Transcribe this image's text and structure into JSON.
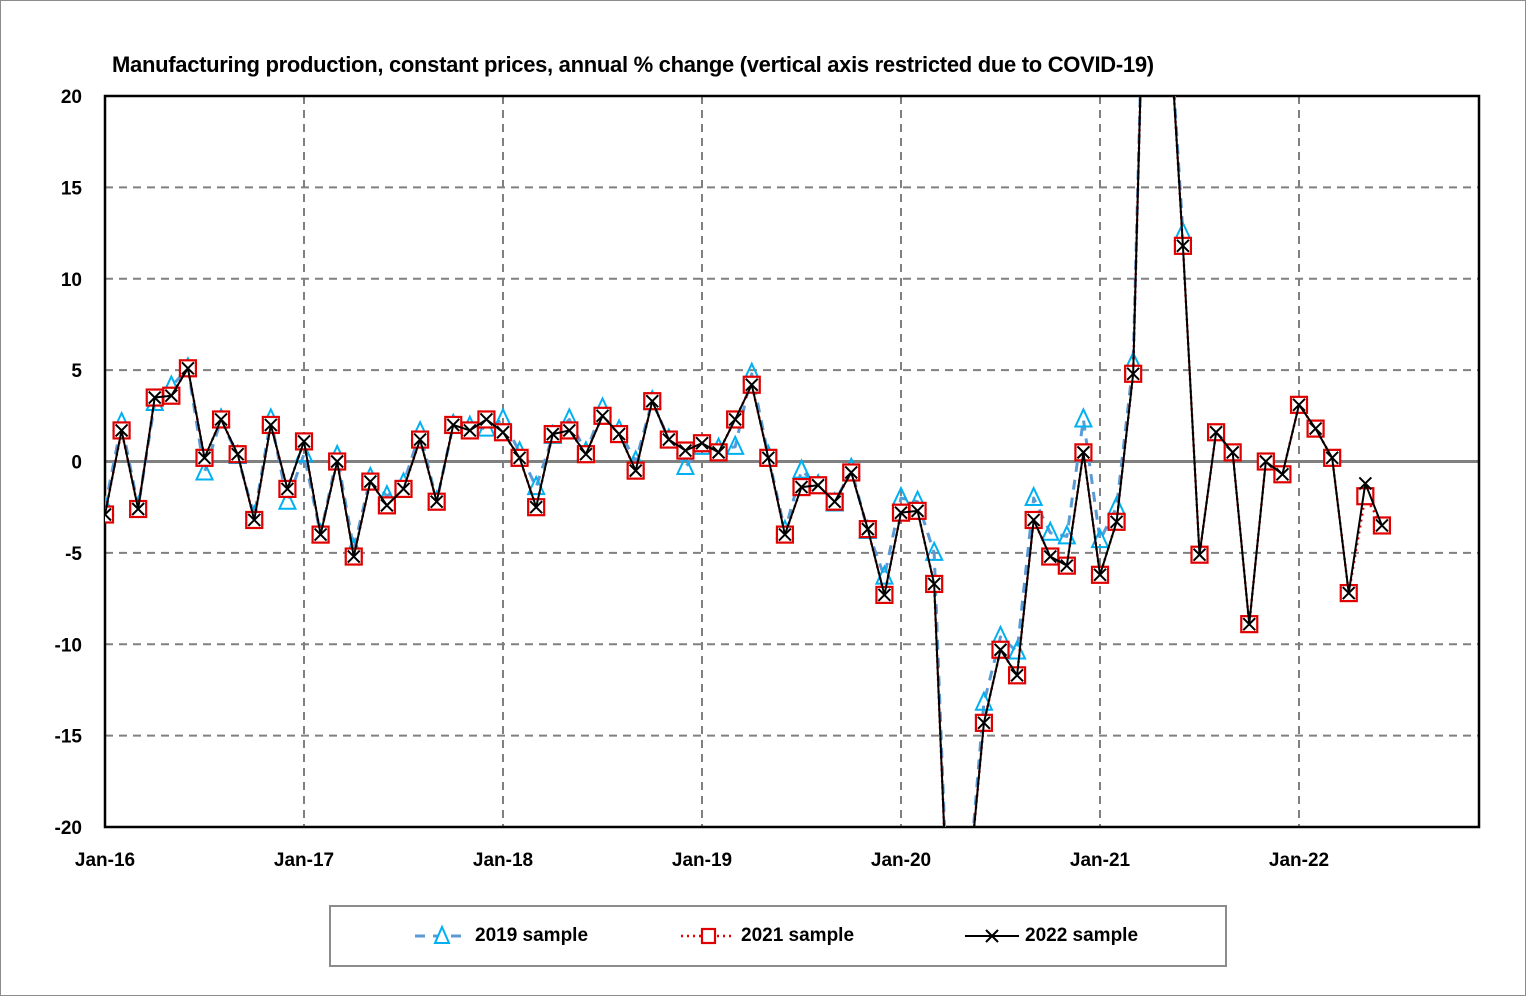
{
  "chart_data": {
    "type": "line",
    "title": "Manufacturing production, constant prices, annual % change (vertical axis restricted due to COVID-19)",
    "xlabel": "",
    "ylabel": "",
    "ylim": [
      -20,
      20
    ],
    "yticks": [
      20,
      15,
      10,
      5,
      0,
      -5,
      -10,
      -15,
      -20
    ],
    "ytick_labels": [
      "20",
      "15",
      "10",
      "5",
      "0",
      "-5",
      "-10",
      "-15",
      "-20"
    ],
    "xtick_labels": [
      "Jan-16",
      "Jan-17",
      "Jan-18",
      "Jan-19",
      "Jan-20",
      "Jan-21",
      "Jan-22"
    ],
    "x_start": "Jan-16",
    "x_frequency": "monthly",
    "x_months_span": 83,
    "grid": true,
    "legend_position": "bottom",
    "series": [
      {
        "name": "2019 sample",
        "color": "#00b0f0",
        "line_color": "#5b9bd5",
        "style": "dashed",
        "marker": "triangle",
        "values": [
          -2.5,
          2.1,
          -2.5,
          3.2,
          4.1,
          5.1,
          -0.6,
          2.3,
          0.3,
          -3.0,
          2.3,
          -2.2,
          0.4,
          -4.0,
          0.3,
          -4.8,
          -0.9,
          -1.9,
          -1.2,
          1.6,
          -2.2,
          2.0,
          1.9,
          1.8,
          2.3,
          0.5,
          -1.4,
          1.4,
          2.3,
          0.5,
          2.9,
          1.7,
          0.0,
          3.3,
          1.2,
          -0.3,
          0.8,
          0.7,
          0.8,
          4.8,
          0.3,
          -3.8,
          -0.5,
          -1.3,
          -2.3,
          -0.4,
          -3.8,
          -6.3,
          -2.0,
          -2.2,
          -5.0,
          -29.0,
          -24.0,
          -13.2,
          -9.6,
          -10.4,
          -2.0,
          -3.9,
          -4.1,
          2.3,
          -4.3,
          -2.5,
          5.4,
          40.0,
          27.0,
          12.5
        ]
      },
      {
        "name": "2021 sample",
        "color": "#e00000",
        "line_color": "#e00000",
        "style": "dotted",
        "marker": "square",
        "values": [
          -2.9,
          1.7,
          -2.6,
          3.5,
          3.6,
          5.1,
          0.2,
          2.3,
          0.4,
          -3.2,
          2.0,
          -1.5,
          1.1,
          -4.0,
          0.0,
          -5.2,
          -1.1,
          -2.4,
          -1.5,
          1.2,
          -2.2,
          2.0,
          1.7,
          2.3,
          1.6,
          0.2,
          -2.5,
          1.5,
          1.7,
          0.4,
          2.5,
          1.5,
          -0.5,
          3.3,
          1.2,
          0.6,
          1.0,
          0.5,
          2.3,
          4.2,
          0.2,
          -4.0,
          -1.4,
          -1.3,
          -2.2,
          -0.6,
          -3.7,
          -7.3,
          -2.8,
          -2.7,
          -6.7,
          -29.0,
          -24.0,
          -14.3,
          -10.3,
          -11.7,
          -3.2,
          -5.2,
          -5.7,
          0.5,
          -6.2,
          -3.3,
          4.8,
          40.0,
          27.0,
          11.8,
          -5.1,
          1.6,
          0.5,
          -8.9,
          0.0,
          -0.7,
          3.1,
          1.8,
          0.2,
          -7.2,
          -1.9,
          -3.5
        ]
      },
      {
        "name": "2022 sample",
        "color": "#000000",
        "line_color": "#000000",
        "style": "solid",
        "marker": "x",
        "values": [
          -2.9,
          1.7,
          -2.6,
          3.5,
          3.6,
          5.1,
          0.2,
          2.3,
          0.4,
          -3.2,
          2.0,
          -1.5,
          1.1,
          -4.0,
          0.0,
          -5.2,
          -1.1,
          -2.4,
          -1.5,
          1.2,
          -2.2,
          2.0,
          1.7,
          2.3,
          1.6,
          0.2,
          -2.5,
          1.5,
          1.7,
          0.4,
          2.5,
          1.5,
          -0.5,
          3.3,
          1.2,
          0.6,
          1.0,
          0.5,
          2.3,
          4.2,
          0.2,
          -4.0,
          -1.4,
          -1.3,
          -2.2,
          -0.6,
          -3.7,
          -7.3,
          -2.8,
          -2.7,
          -6.7,
          -29.0,
          -24.0,
          -14.3,
          -10.3,
          -11.7,
          -3.2,
          -5.2,
          -5.7,
          0.5,
          -6.2,
          -3.3,
          4.8,
          40.0,
          27.0,
          11.8,
          -5.1,
          1.6,
          0.5,
          -8.9,
          0.0,
          -0.7,
          3.1,
          1.8,
          0.2,
          -7.2,
          -1.2,
          -3.5
        ]
      }
    ]
  }
}
